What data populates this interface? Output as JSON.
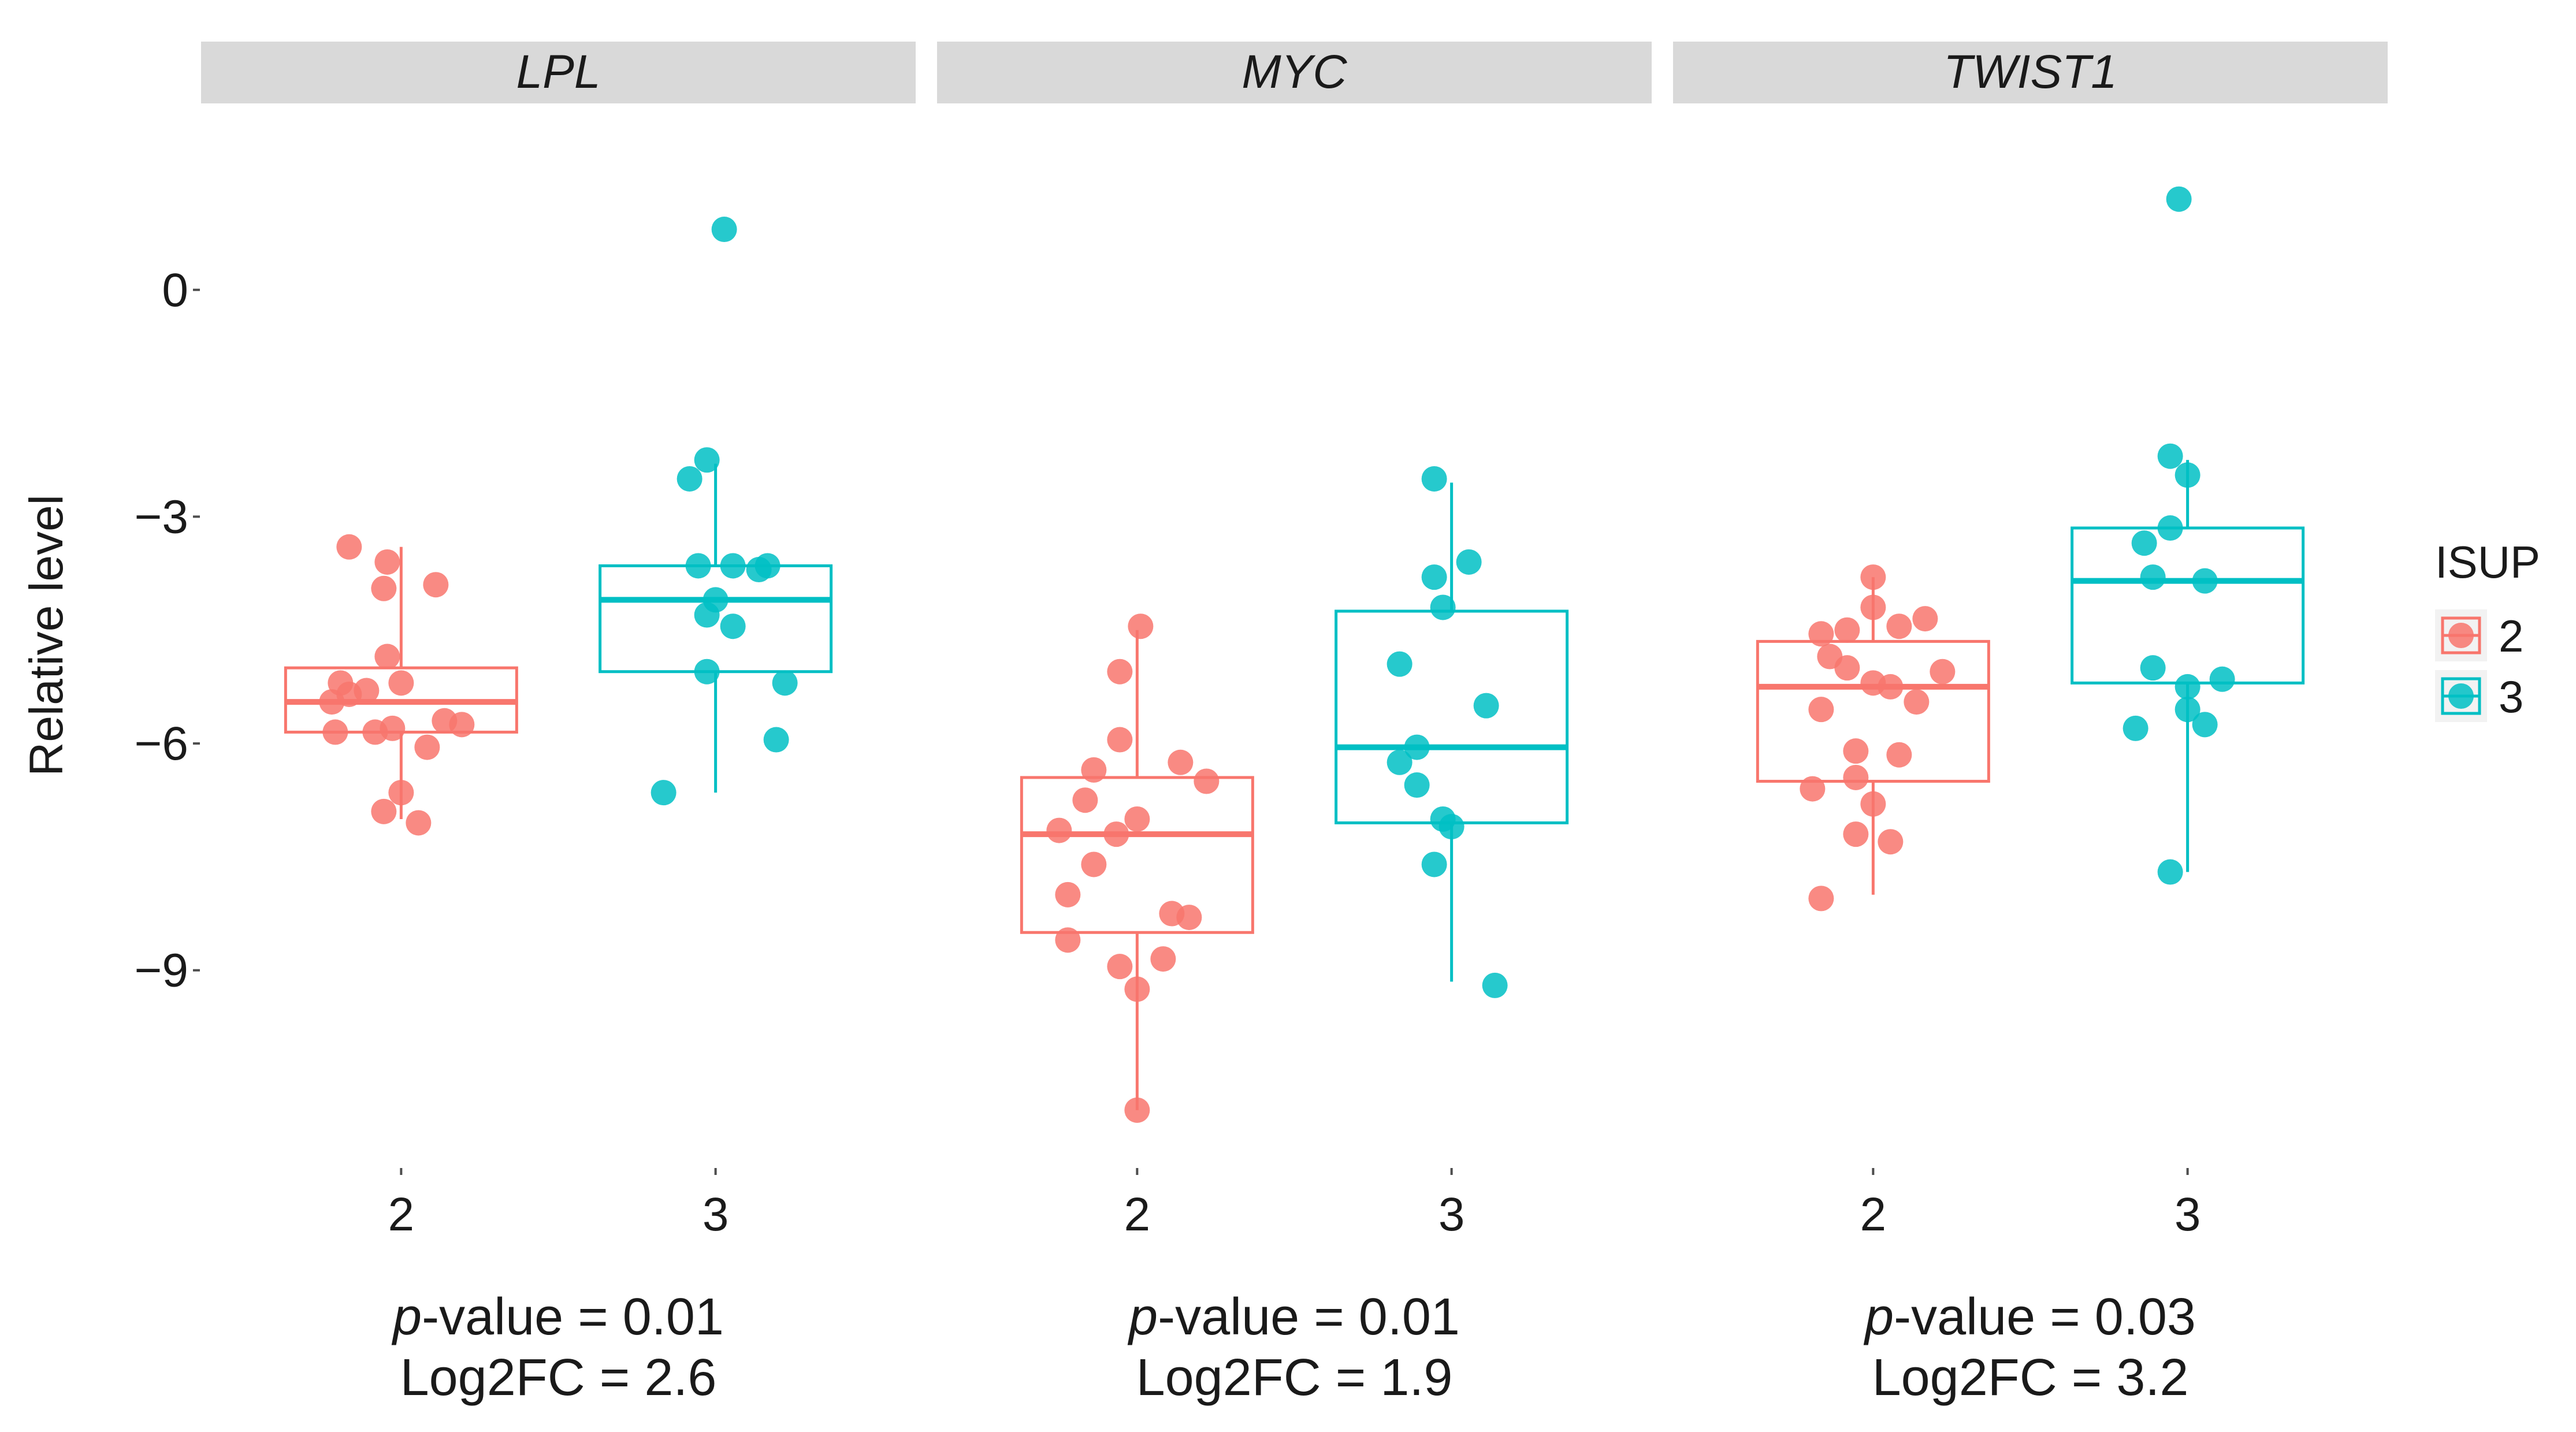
{
  "chart_data": {
    "type": "boxplot",
    "ylabel": "Relative level",
    "ylim": [
      -11.6,
      2.0
    ],
    "y_ticks": [
      {
        "value": 0,
        "label": "0"
      },
      {
        "value": -3,
        "label": "−3"
      },
      {
        "value": -6,
        "label": "−6"
      },
      {
        "value": -9,
        "label": "−9"
      }
    ],
    "legend": {
      "title": "ISUP",
      "position": "right",
      "entries": [
        {
          "label": "2",
          "color": "#f8766d"
        },
        {
          "label": "3",
          "color": "#00bfc4"
        }
      ]
    },
    "panels": [
      {
        "title": "LPL",
        "p_prefix": "p",
        "p_rest": "-value = 0.01",
        "log2fc": "Log2FC = 2.6",
        "groups": [
          {
            "label": "2",
            "color": "#f8766d",
            "q1": -5.85,
            "median": -5.45,
            "q3": -5.0,
            "whisker_low": -7.0,
            "whisker_high": -3.4,
            "points": [
              [
                -0.3,
                -3.4
              ],
              [
                -0.08,
                -3.6
              ],
              [
                -0.1,
                -3.95
              ],
              [
                0.2,
                -3.9
              ],
              [
                -0.08,
                -4.85
              ],
              [
                -0.35,
                -5.2
              ],
              [
                0.0,
                -5.2
              ],
              [
                -0.2,
                -5.3
              ],
              [
                -0.3,
                -5.35
              ],
              [
                -0.4,
                -5.45
              ],
              [
                0.25,
                -5.7
              ],
              [
                0.35,
                -5.75
              ],
              [
                -0.05,
                -5.8
              ],
              [
                -0.15,
                -5.85
              ],
              [
                -0.38,
                -5.85
              ],
              [
                0.15,
                -6.05
              ],
              [
                0.0,
                -6.65
              ],
              [
                -0.1,
                -6.9
              ],
              [
                0.1,
                -7.05
              ]
            ]
          },
          {
            "label": "3",
            "color": "#00bfc4",
            "q1": -5.05,
            "median": -4.1,
            "q3": -3.65,
            "whisker_low": -6.65,
            "whisker_high": -2.3,
            "points": [
              [
                -0.15,
                -2.5
              ],
              [
                -0.05,
                -2.25
              ],
              [
                0.05,
                0.8
              ],
              [
                -0.1,
                -3.65
              ],
              [
                0.1,
                -3.65
              ],
              [
                0.3,
                -3.65
              ],
              [
                0.25,
                -3.7
              ],
              [
                0.0,
                -4.1
              ],
              [
                -0.05,
                -4.3
              ],
              [
                0.1,
                -4.45
              ],
              [
                -0.05,
                -5.05
              ],
              [
                0.4,
                -5.2
              ],
              [
                0.35,
                -5.95
              ],
              [
                -0.3,
                -6.65
              ]
            ]
          }
        ]
      },
      {
        "title": "MYC",
        "p_prefix": "p",
        "p_rest": "-value = 0.01",
        "log2fc": "Log2FC = 1.9",
        "groups": [
          {
            "label": "2",
            "color": "#f8766d",
            "q1": -8.5,
            "median": -7.2,
            "q3": -6.45,
            "whisker_low": -10.85,
            "whisker_high": -4.5,
            "points": [
              [
                0.02,
                -4.45
              ],
              [
                -0.1,
                -5.05
              ],
              [
                -0.1,
                -5.95
              ],
              [
                -0.25,
                -6.35
              ],
              [
                0.25,
                -6.25
              ],
              [
                0.4,
                -6.5
              ],
              [
                -0.3,
                -6.75
              ],
              [
                0.0,
                -7.0
              ],
              [
                -0.45,
                -7.15
              ],
              [
                -0.12,
                -7.2
              ],
              [
                -0.25,
                -7.6
              ],
              [
                -0.4,
                -8.0
              ],
              [
                0.2,
                -8.25
              ],
              [
                0.3,
                -8.3
              ],
              [
                -0.4,
                -8.6
              ],
              [
                0.15,
                -8.85
              ],
              [
                -0.1,
                -8.95
              ],
              [
                0.0,
                -9.25
              ],
              [
                0.0,
                -10.85
              ]
            ]
          },
          {
            "label": "3",
            "color": "#00bfc4",
            "q1": -7.05,
            "median": -6.05,
            "q3": -4.25,
            "whisker_low": -9.15,
            "whisker_high": -2.55,
            "points": [
              [
                -0.1,
                -2.5
              ],
              [
                0.1,
                -3.6
              ],
              [
                -0.1,
                -3.8
              ],
              [
                -0.05,
                -4.2
              ],
              [
                -0.3,
                -4.95
              ],
              [
                0.2,
                -5.5
              ],
              [
                -0.2,
                -6.05
              ],
              [
                -0.3,
                -6.25
              ],
              [
                -0.2,
                -6.55
              ],
              [
                -0.05,
                -7.0
              ],
              [
                0.0,
                -7.1
              ],
              [
                -0.1,
                -7.6
              ],
              [
                0.25,
                -9.2
              ]
            ]
          }
        ]
      },
      {
        "title": "TWIST1",
        "p_prefix": "p",
        "p_rest": "-value = 0.03",
        "log2fc": "Log2FC = 3.2",
        "groups": [
          {
            "label": "2",
            "color": "#f8766d",
            "q1": -6.5,
            "median": -5.25,
            "q3": -4.65,
            "whisker_low": -8.0,
            "whisker_high": -3.8,
            "points": [
              [
                0.0,
                -3.8
              ],
              [
                0.0,
                -4.2
              ],
              [
                -0.15,
                -4.5
              ],
              [
                0.15,
                -4.45
              ],
              [
                0.3,
                -4.35
              ],
              [
                -0.3,
                -4.55
              ],
              [
                -0.25,
                -4.85
              ],
              [
                -0.15,
                -5.0
              ],
              [
                0.4,
                -5.05
              ],
              [
                0.0,
                -5.2
              ],
              [
                0.1,
                -5.25
              ],
              [
                -0.3,
                -5.55
              ],
              [
                0.25,
                -5.45
              ],
              [
                -0.1,
                -6.1
              ],
              [
                0.15,
                -6.15
              ],
              [
                -0.1,
                -6.45
              ],
              [
                -0.35,
                -6.6
              ],
              [
                0.0,
                -6.8
              ],
              [
                -0.1,
                -7.2
              ],
              [
                0.1,
                -7.3
              ],
              [
                -0.3,
                -8.05
              ]
            ]
          },
          {
            "label": "3",
            "color": "#00bfc4",
            "q1": -5.2,
            "median": -3.85,
            "q3": -3.15,
            "whisker_low": -7.7,
            "whisker_high": -2.25,
            "points": [
              [
                -0.05,
                1.2
              ],
              [
                -0.1,
                -2.2
              ],
              [
                0.0,
                -2.45
              ],
              [
                -0.1,
                -3.15
              ],
              [
                -0.25,
                -3.35
              ],
              [
                -0.2,
                -3.8
              ],
              [
                0.1,
                -3.85
              ],
              [
                -0.2,
                -5.0
              ],
              [
                0.0,
                -5.25
              ],
              [
                0.2,
                -5.15
              ],
              [
                0.0,
                -5.55
              ],
              [
                0.1,
                -5.75
              ],
              [
                -0.3,
                -5.8
              ],
              [
                -0.1,
                -7.7
              ]
            ]
          }
        ]
      }
    ]
  }
}
